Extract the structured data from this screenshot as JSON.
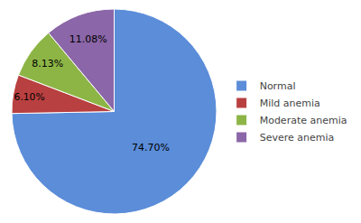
{
  "chart_data": {
    "type": "pie",
    "categories": [
      "Normal",
      "Mild anemia",
      "Moderate anemia",
      "Severe anemia"
    ],
    "values": [
      74.7,
      6.1,
      8.13,
      11.08
    ],
    "value_labels": [
      "74.70%",
      "6.10%",
      "8.13%",
      "11.08%"
    ],
    "colors": [
      "#5B8DD9",
      "#B94040",
      "#8DB546",
      "#8B66A8"
    ],
    "data_labels": true,
    "legend": "right"
  }
}
